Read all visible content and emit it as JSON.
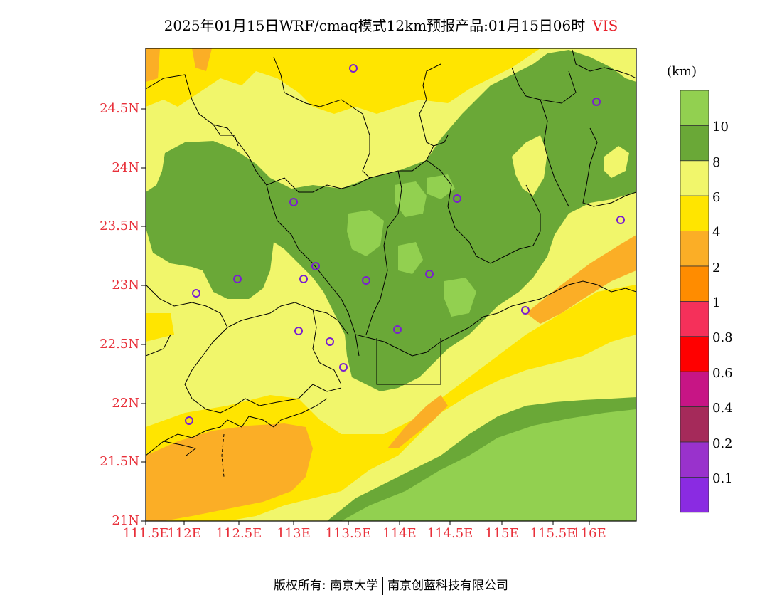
{
  "title": {
    "main": "2025年01月15日WRF/cmaq模式12km预报产品:01月15日06时",
    "variable": "VIS"
  },
  "axes": {
    "lat_labels": [
      "24.5N",
      "24N",
      "23.5N",
      "23N",
      "22.5N",
      "22N",
      "21.5N",
      "21N"
    ],
    "lon_labels": [
      "111.5E",
      "112E",
      "112.5E",
      "113E",
      "113.5E",
      "114E",
      "114.5E",
      "115E",
      "115.5E",
      "116E"
    ]
  },
  "legend": {
    "unit": "(km)",
    "labels": [
      "10",
      "8",
      "6",
      "4",
      "2",
      "1",
      "0.8",
      "0.6",
      "0.4",
      "0.2",
      "0.1"
    ],
    "colors": [
      "#92d050",
      "#6aa837",
      "#f1f66b",
      "#ffe500",
      "#fbae26",
      "#ff8c00",
      "#f5305a",
      "#ff0000",
      "#c71585",
      "#a52a5a",
      "#9932cc",
      "#8a2be2"
    ]
  },
  "cities": [
    "city",
    "city",
    "city",
    "city",
    "city",
    "city",
    "city",
    "city",
    "city",
    "city",
    "city",
    "city",
    "city",
    "city",
    "city",
    "city"
  ],
  "footer": {
    "left": "版权所有: 南京大学",
    "right": "南京创蓝科技有限公司"
  }
}
